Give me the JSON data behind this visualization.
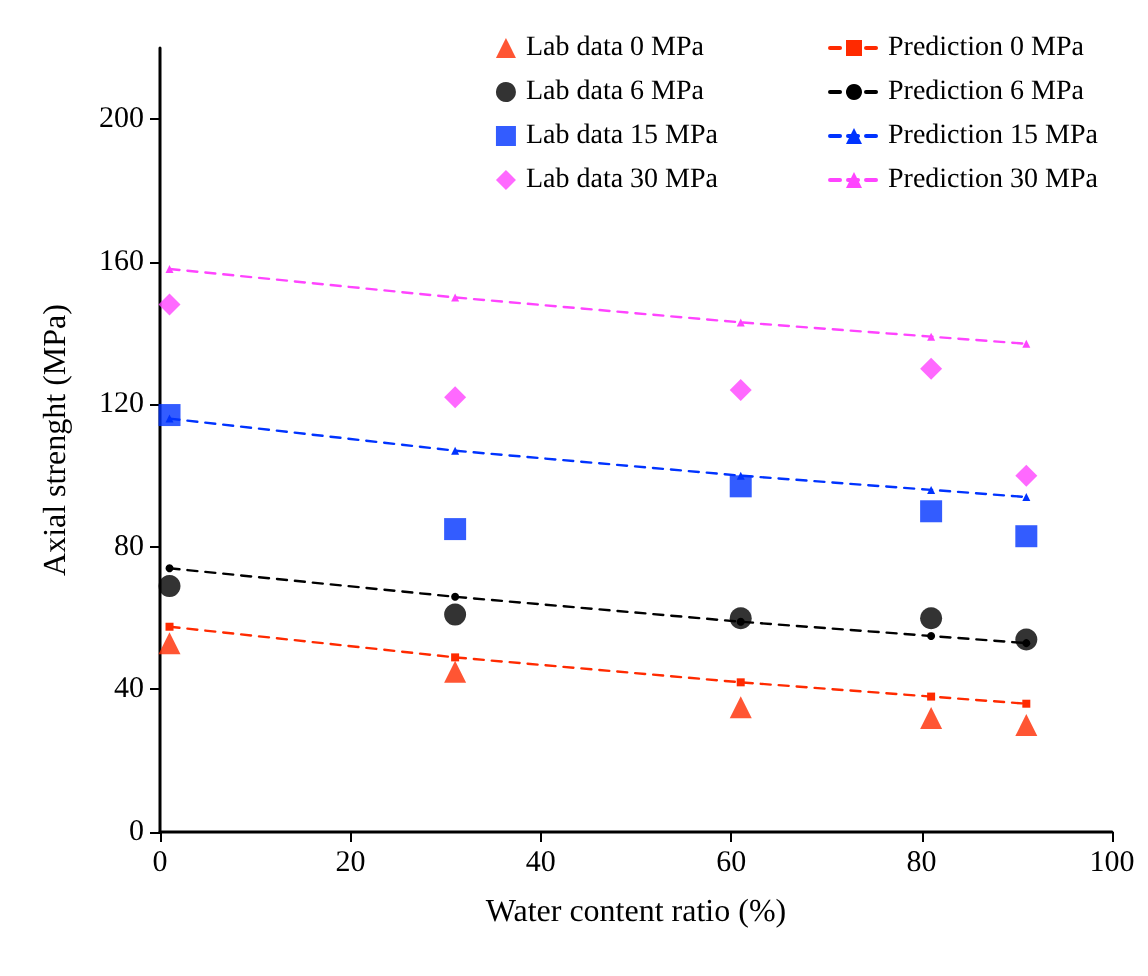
{
  "chart_data": {
    "type": "scatter",
    "xlabel": "Water content ratio (%)",
    "ylabel": "Axial strenght (MPa)",
    "xlim": [
      0,
      100
    ],
    "xticks": [
      0,
      20,
      40,
      60,
      80,
      100
    ],
    "ylim": [
      0,
      220
    ],
    "yticks": [
      0,
      40,
      80,
      120,
      160,
      200
    ],
    "grid": false,
    "legend": "top right",
    "series": [
      {
        "name": "Lab data 0 MPa",
        "marker": "triangle",
        "color": "#ff2a00",
        "x": [
          1,
          31,
          61,
          81,
          91
        ],
        "values": [
          53,
          45,
          35,
          32,
          30
        ]
      },
      {
        "name": "Lab data 6 MPa",
        "marker": "circle",
        "color": "#000000",
        "x": [
          1,
          31,
          61,
          81,
          91
        ],
        "values": [
          69,
          61,
          60,
          60,
          54
        ]
      },
      {
        "name": "Lab data 15 MPa",
        "marker": "square",
        "color": "#0033ff",
        "x": [
          1,
          31,
          61,
          81,
          91
        ],
        "values": [
          117,
          85,
          97,
          90,
          83
        ]
      },
      {
        "name": "Lab data 30 MPa",
        "marker": "diamond",
        "color": "#ff44ff",
        "x": [
          1,
          31,
          61,
          81,
          91
        ],
        "values": [
          148,
          122,
          124,
          130,
          100
        ]
      },
      {
        "name": "Prediction 0 MPa",
        "type": "line",
        "marker": "square",
        "line_style": "dashed",
        "color": "#ff2a00",
        "x": [
          1,
          31,
          61,
          81,
          91
        ],
        "values": [
          57.6,
          49,
          42,
          38,
          36
        ]
      },
      {
        "name": "Prediction 6 MPa",
        "type": "line",
        "marker": "circle",
        "line_style": "dashed",
        "color": "#000000",
        "x": [
          1,
          31,
          61,
          81,
          91
        ],
        "values": [
          74,
          66,
          59,
          55,
          53
        ]
      },
      {
        "name": "Prediction 15 MPa",
        "type": "line",
        "marker": "triangle",
        "line_style": "dashed",
        "color": "#0033ff",
        "x": [
          1,
          31,
          61,
          81,
          91
        ],
        "values": [
          116,
          107,
          100,
          96,
          94
        ]
      },
      {
        "name": "Prediction 30 MPa",
        "type": "line",
        "marker": "triangle",
        "line_style": "dashed",
        "color": "#ff44ff",
        "x": [
          1,
          31,
          61,
          81,
          91
        ],
        "values": [
          158,
          150,
          143,
          139,
          137
        ]
      }
    ]
  }
}
